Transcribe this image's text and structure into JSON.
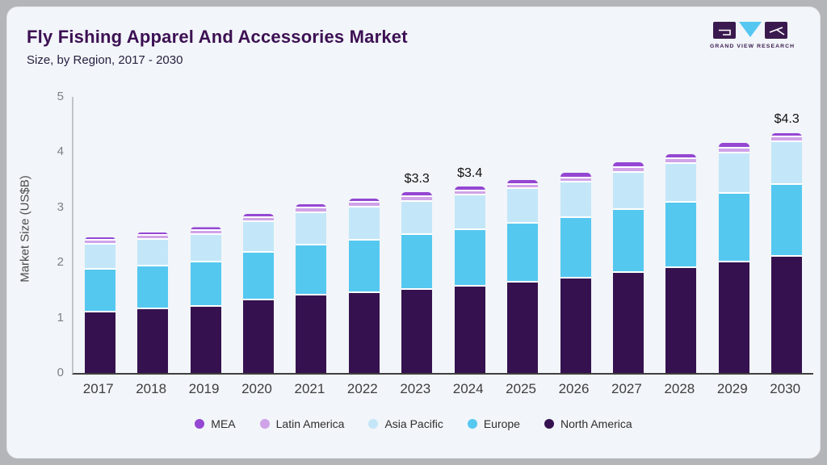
{
  "header": {
    "title": "Fly Fishing Apparel And Accessories Market",
    "subtitle": "Size, by Region, 2017 - 2030",
    "logo_text": "GRAND VIEW RESEARCH"
  },
  "chart_data": {
    "type": "bar",
    "stacked": true,
    "title": "Fly Fishing Apparel And Accessories Market Size, by Region, 2017 - 2030",
    "xlabel": "",
    "ylabel": "Market Size (US$B)",
    "ylim": [
      0,
      5
    ],
    "yticks": [
      0,
      1,
      2,
      3,
      4,
      5
    ],
    "grid": false,
    "legend_position": "bottom",
    "categories": [
      2017,
      2018,
      2019,
      2020,
      2021,
      2022,
      2023,
      2024,
      2025,
      2026,
      2027,
      2028,
      2029,
      2030
    ],
    "series": [
      {
        "name": "North America",
        "color": "#35124f",
        "values": [
          1.1,
          1.15,
          1.2,
          1.31,
          1.4,
          1.45,
          1.51,
          1.57,
          1.64,
          1.71,
          1.81,
          1.9,
          2.0,
          2.1
        ]
      },
      {
        "name": "Europe",
        "color": "#55c8f0",
        "values": [
          0.77,
          0.78,
          0.8,
          0.87,
          0.91,
          0.95,
          0.99,
          1.02,
          1.06,
          1.1,
          1.14,
          1.18,
          1.25,
          1.3
        ]
      },
      {
        "name": "Asia Pacific",
        "color": "#c3e7f8",
        "values": [
          0.46,
          0.48,
          0.5,
          0.56,
          0.59,
          0.6,
          0.6,
          0.62,
          0.63,
          0.64,
          0.68,
          0.71,
          0.73,
          0.78
        ]
      },
      {
        "name": "Latin America",
        "color": "#d0a3e8",
        "values": [
          0.07,
          0.07,
          0.07,
          0.07,
          0.08,
          0.08,
          0.09,
          0.08,
          0.08,
          0.08,
          0.09,
          0.09,
          0.08,
          0.09
        ]
      },
      {
        "name": "MEA",
        "color": "#9447d2",
        "values": [
          0.06,
          0.07,
          0.07,
          0.07,
          0.08,
          0.08,
          0.08,
          0.09,
          0.09,
          0.09,
          0.09,
          0.09,
          0.1,
          0.08
        ]
      }
    ],
    "annotations": [
      {
        "year": 2023,
        "label": "$3.3"
      },
      {
        "year": 2024,
        "label": "$3.4"
      },
      {
        "year": 2030,
        "label": "$4.3"
      }
    ],
    "legend_order": [
      "MEA",
      "Latin America",
      "Asia Pacific",
      "Europe",
      "North America"
    ]
  },
  "logo_colors": {
    "purple": "#3a1a4e",
    "blue": "#56c7f0"
  }
}
